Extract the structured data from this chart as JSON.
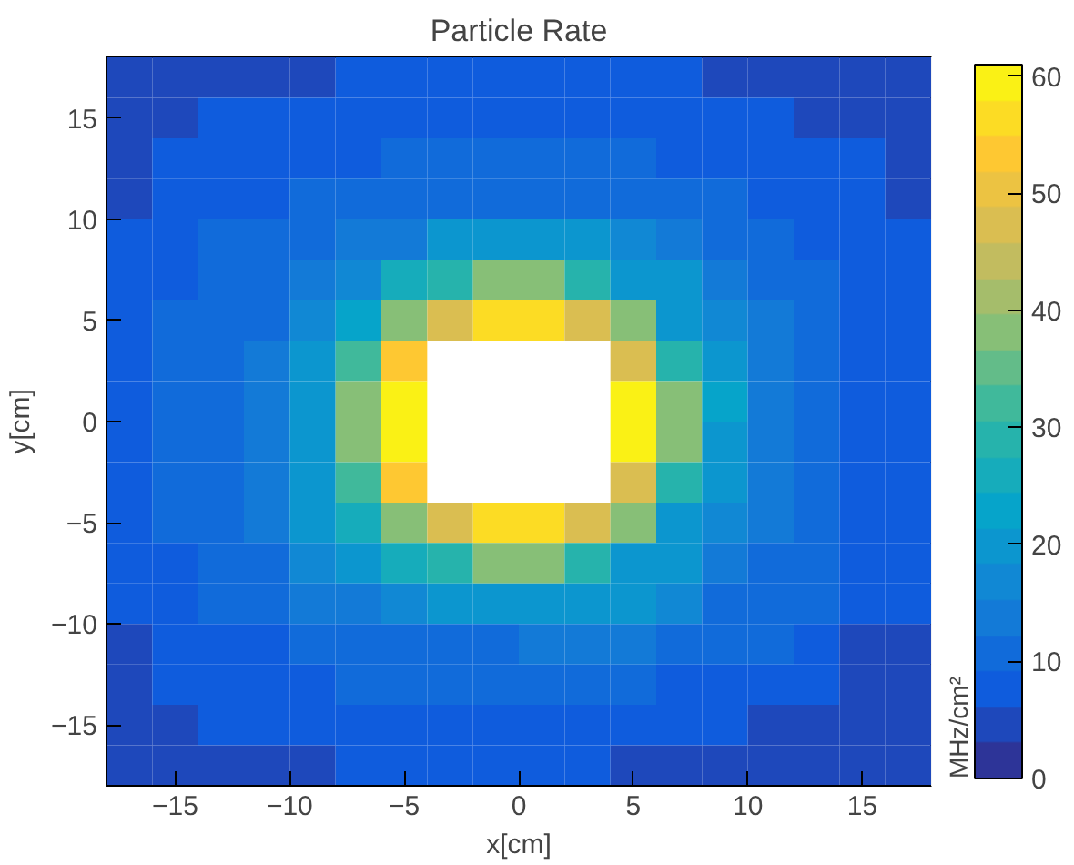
{
  "chart_data": {
    "type": "heatmap",
    "title": "Particle Rate",
    "xlabel": "x[cm]",
    "ylabel": "y[cm]",
    "clabel": "MHz/cm²",
    "x": [
      -17,
      -15,
      -13,
      -11,
      -9,
      -7,
      -5,
      -3,
      -1,
      1,
      3,
      5,
      7,
      9,
      11,
      13,
      15,
      17
    ],
    "y": [
      17,
      15,
      13,
      11,
      9,
      7,
      5,
      3,
      1,
      -1,
      -3,
      -5,
      -7,
      -9,
      -11,
      -13,
      -15,
      -17
    ],
    "xlim": [
      -18,
      18
    ],
    "ylim": [
      -18,
      18
    ],
    "xticks": [
      -15,
      -10,
      -5,
      0,
      5,
      10,
      15
    ],
    "yticks": [
      -15,
      -10,
      -5,
      0,
      5,
      10,
      15
    ],
    "clim": [
      0,
      61
    ],
    "cticks": [
      0,
      10,
      20,
      30,
      40,
      50,
      60
    ],
    "grid": false,
    "cells": [
      [
        5,
        5,
        5,
        5,
        5,
        8,
        8,
        8,
        8,
        8,
        8,
        8,
        8,
        5,
        5,
        5,
        5,
        5
      ],
      [
        5,
        5,
        8,
        8,
        8,
        8,
        8,
        8,
        8,
        8,
        8,
        8,
        8,
        8,
        8,
        5,
        5,
        5
      ],
      [
        5,
        8,
        8,
        8,
        8,
        8,
        10,
        10,
        10,
        10,
        10,
        10,
        8,
        8,
        8,
        8,
        8,
        5
      ],
      [
        5,
        8,
        8,
        8,
        10,
        10,
        12,
        12,
        12,
        12,
        12,
        12,
        10,
        10,
        8,
        8,
        8,
        5
      ],
      [
        8,
        8,
        10,
        10,
        12,
        13,
        15,
        19,
        21,
        21,
        19,
        16,
        13,
        12,
        10,
        8,
        8,
        8
      ],
      [
        8,
        8,
        10,
        12,
        15,
        18,
        25,
        28,
        38,
        38,
        28,
        21,
        19,
        13,
        10,
        10,
        8,
        8
      ],
      [
        8,
        10,
        10,
        12,
        18,
        24,
        38,
        48,
        55,
        55,
        47,
        38,
        21,
        16,
        13,
        10,
        8,
        8
      ],
      [
        8,
        10,
        12,
        15,
        21,
        33,
        52,
        null,
        null,
        null,
        null,
        48,
        28,
        19,
        15,
        10,
        8,
        8
      ],
      [
        8,
        10,
        12,
        15,
        21,
        38,
        60,
        null,
        null,
        null,
        null,
        59,
        38,
        22,
        15,
        10,
        8,
        8
      ],
      [
        8,
        10,
        12,
        15,
        21,
        38,
        60,
        null,
        null,
        null,
        null,
        60,
        38,
        21,
        15,
        12,
        8,
        8
      ],
      [
        8,
        10,
        12,
        15,
        19,
        33,
        52,
        null,
        null,
        null,
        null,
        48,
        28,
        19,
        15,
        12,
        8,
        8
      ],
      [
        8,
        10,
        10,
        13,
        19,
        25,
        38,
        48,
        55,
        55,
        47,
        38,
        21,
        16,
        15,
        12,
        8,
        8
      ],
      [
        8,
        8,
        10,
        12,
        16,
        19,
        25,
        28,
        38,
        38,
        28,
        21,
        19,
        13,
        12,
        10,
        8,
        8
      ],
      [
        8,
        8,
        10,
        10,
        13,
        13,
        16,
        19,
        21,
        21,
        19,
        19,
        16,
        12,
        12,
        10,
        8,
        8
      ],
      [
        5,
        8,
        8,
        8,
        10,
        10,
        12,
        12,
        12,
        13,
        13,
        13,
        12,
        10,
        10,
        8,
        5,
        5
      ],
      [
        5,
        8,
        8,
        8,
        8,
        10,
        10,
        10,
        10,
        12,
        12,
        12,
        8,
        8,
        8,
        8,
        5,
        5
      ],
      [
        5,
        5,
        8,
        8,
        8,
        8,
        8,
        8,
        8,
        8,
        8,
        8,
        8,
        8,
        5,
        5,
        5,
        5
      ],
      [
        5,
        5,
        5,
        5,
        5,
        8,
        8,
        8,
        8,
        8,
        8,
        5,
        5,
        5,
        5,
        5,
        5,
        5
      ]
    ]
  }
}
